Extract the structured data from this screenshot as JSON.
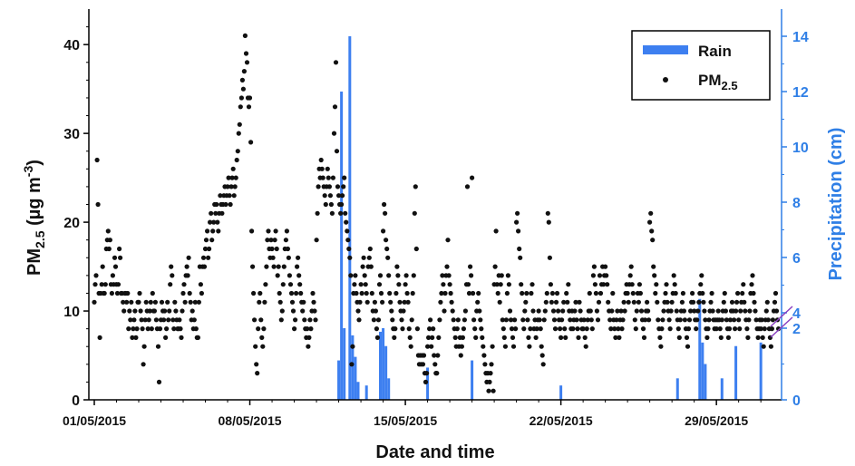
{
  "chart_data": {
    "type": "scatter",
    "title": "",
    "xlabel": "Date and time",
    "ylabel_left": {
      "base": "PM",
      "sub": "2.5",
      "unit_open": " (µg m",
      "sup": "-3",
      "unit_close": ")"
    },
    "ylabel_right": "Precipitation (cm)",
    "x_range_days": [
      "01/05/2015",
      "31/05/2015"
    ],
    "x_ticks": [
      "01/05/2015",
      "08/05/2015",
      "15/05/2015",
      "22/05/2015",
      "29/05/2015"
    ],
    "y_left_lim": [
      0,
      44
    ],
    "y_left_ticks": [
      0,
      10,
      20,
      30,
      40
    ],
    "y_right_lim": [
      0,
      15
    ],
    "y_right_scale": "broken: 0-2 compressed, 4-14 linear",
    "y_right_ticks": [
      0,
      2,
      4,
      6,
      8,
      10,
      12,
      14
    ],
    "legend": {
      "position": "top-right",
      "entries": [
        {
          "label": "Rain"
        },
        {
          "label_base": "PM",
          "label_sub": "2.5"
        }
      ]
    },
    "colors": {
      "rain": "#3d7ff0",
      "pm25": "#111111",
      "right_axis": "#2f7fe6"
    },
    "series": [
      {
        "name": "Rain",
        "kind": "bar",
        "unit": "cm",
        "points": [
          [
            "12/05/2015 00:00",
            1.1
          ],
          [
            "12/05/2015 03:00",
            12.0
          ],
          [
            "12/05/2015 06:00",
            2.0
          ],
          [
            "12/05/2015 12:00",
            14.0
          ],
          [
            "12/05/2015 15:00",
            1.8
          ],
          [
            "12/05/2015 18:00",
            1.2
          ],
          [
            "12/05/2015 21:00",
            0.5
          ],
          [
            "13/05/2015 06:00",
            0.4
          ],
          [
            "13/05/2015 21:00",
            1.9
          ],
          [
            "14/05/2015 00:00",
            2.0
          ],
          [
            "14/05/2015 03:00",
            1.5
          ],
          [
            "14/05/2015 06:00",
            0.6
          ],
          [
            "16/05/2015 00:00",
            0.9
          ],
          [
            "18/05/2015 00:00",
            1.1
          ],
          [
            "22/05/2015 00:00",
            0.4
          ],
          [
            "27/05/2015 06:00",
            0.6
          ],
          [
            "28/05/2015 06:00",
            4.5
          ],
          [
            "28/05/2015 09:00",
            1.6
          ],
          [
            "28/05/2015 12:00",
            1.0
          ],
          [
            "29/05/2015 06:00",
            0.6
          ],
          [
            "29/05/2015 21:00",
            1.5
          ],
          [
            "31/05/2015 00:00",
            1.6
          ]
        ]
      },
      {
        "name": "PM2.5",
        "kind": "scatter",
        "unit": "µg m-3",
        "daily_hourly_profile": [
          [
            "01/05/2015",
            [
              11,
              13,
              14,
              27,
              22,
              12,
              7,
              12,
              13,
              15,
              12,
              12,
              13,
              17,
              18,
              19,
              17,
              18,
              13,
              12,
              14,
              13,
              16,
              15
            ]
          ],
          [
            "02/05/2015",
            [
              13,
              12,
              13,
              17,
              16,
              12,
              12,
              11,
              10,
              12,
              12,
              11,
              12,
              8,
              10,
              9,
              11,
              7,
              8,
              9,
              10,
              7,
              8,
              11
            ]
          ],
          [
            "03/05/2015",
            [
              11,
              12,
              10,
              9,
              8,
              4,
              6,
              9,
              11,
              10,
              8,
              9,
              10,
              11,
              8,
              12,
              10,
              10,
              11,
              9,
              8,
              6,
              2,
              8
            ]
          ],
          [
            "04/05/2015",
            [
              9,
              11,
              10,
              9,
              10,
              7,
              8,
              11,
              9,
              10,
              13,
              15,
              14,
              9,
              8,
              11,
              10,
              9,
              8,
              8,
              9,
              8,
              7,
              10
            ]
          ],
          [
            "05/05/2015",
            [
              12,
              13,
              11,
              14,
              15,
              14,
              16,
              12,
              11,
              9,
              10,
              8,
              9,
              11,
              8,
              7,
              7,
              11,
              15,
              13,
              12,
              15,
              16,
              15
            ]
          ],
          [
            "06/05/2015",
            [
              17,
              18,
              19,
              16,
              17,
              20,
              21,
              18,
              19,
              20,
              22,
              21,
              22,
              20,
              19,
              21,
              23,
              22,
              21,
              22,
              23,
              24,
              22,
              23
            ]
          ],
          [
            "07/05/2015",
            [
              24,
              25,
              23,
              22,
              24,
              25,
              26,
              23,
              24,
              25,
              27,
              28,
              30,
              31,
              33,
              34,
              36,
              35,
              37,
              41,
              39,
              38,
              34,
              33
            ]
          ],
          [
            "08/05/2015",
            [
              34,
              29,
              19,
              15,
              12,
              9,
              6,
              4,
              3,
              8,
              11,
              12,
              9,
              7,
              6,
              8,
              11,
              13,
              15,
              18,
              19,
              17,
              16,
              18
            ]
          ],
          [
            "09/05/2015",
            [
              17,
              16,
              15,
              18,
              19,
              17,
              14,
              15,
              12,
              11,
              9,
              10,
              13,
              15,
              17,
              18,
              19,
              17,
              16,
              14,
              13,
              12,
              11,
              10
            ]
          ],
          [
            "10/05/2015",
            [
              8,
              9,
              12,
              15,
              16,
              14,
              13,
              12,
              11,
              10,
              11,
              9,
              8,
              7,
              8,
              6,
              7,
              9,
              8,
              10,
              12,
              11,
              10,
              9
            ]
          ],
          [
            "11/05/2015",
            [
              18,
              21,
              24,
              26,
              25,
              27,
              26,
              25,
              24,
              23,
              22,
              24,
              26,
              25,
              24,
              23,
              22,
              21,
              25,
              30,
              33,
              38,
              28,
              24
            ]
          ],
          [
            "12/05/2015",
            [
              23,
              22,
              21,
              22,
              23,
              24,
              25,
              21,
              20,
              19,
              18,
              17,
              16,
              14,
              4,
              6,
              12,
              13,
              14,
              12,
              11,
              10,
              9,
              11
            ]
          ],
          [
            "13/05/2015",
            [
              13,
              12,
              15,
              16,
              14,
              13,
              12,
              11,
              15,
              16,
              17,
              15,
              12,
              10,
              9,
              11,
              10,
              8,
              7,
              9,
              13,
              14,
              12,
              11
            ]
          ],
          [
            "14/05/2015",
            [
              19,
              22,
              21,
              18,
              17,
              16,
              14,
              12,
              11,
              10,
              9,
              8,
              7,
              8,
              12,
              15,
              14,
              13,
              11,
              10,
              9,
              8,
              10,
              11
            ]
          ],
          [
            "15/05/2015",
            [
              13,
              14,
              12,
              11,
              8,
              7,
              6,
              9,
              12,
              14,
              21,
              24,
              17,
              8,
              5,
              4,
              5,
              4,
              5,
              4,
              5,
              3,
              2,
              3
            ]
          ],
          [
            "16/05/2015",
            [
              6,
              7,
              8,
              9,
              6,
              7,
              8,
              5,
              4,
              3,
              3,
              5,
              7,
              9,
              11,
              12,
              14,
              13,
              10,
              12,
              14,
              15,
              18,
              14
            ]
          ],
          [
            "17/05/2015",
            [
              13,
              12,
              11,
              10,
              9,
              8,
              7,
              6,
              8,
              9,
              6,
              7,
              5,
              6,
              7,
              8,
              9,
              10,
              13,
              24,
              13,
              12,
              15,
              14
            ]
          ],
          [
            "18/05/2015",
            [
              25,
              12,
              9,
              8,
              7,
              10,
              11,
              12,
              10,
              9,
              8,
              7,
              6,
              5,
              4,
              3,
              2,
              3,
              1,
              2,
              3,
              4,
              6,
              1
            ]
          ],
          [
            "19/05/2015",
            [
              13,
              15,
              19,
              13,
              12,
              14,
              11,
              13,
              14,
              9,
              8,
              7,
              6,
              9,
              12,
              14,
              13,
              10,
              9,
              8,
              7,
              6,
              9,
              8
            ]
          ],
          [
            "20/05/2015",
            [
              20,
              21,
              19,
              17,
              16,
              13,
              12,
              9,
              8,
              10,
              11,
              12,
              9,
              7,
              6,
              8,
              12,
              13,
              10,
              8,
              9,
              7,
              8,
              9
            ]
          ],
          [
            "21/05/2015",
            [
              10,
              9,
              8,
              6,
              5,
              4,
              9,
              10,
              11,
              12,
              21,
              20,
              16,
              13,
              11,
              12,
              10,
              9,
              8,
              11,
              12,
              10,
              9,
              8
            ]
          ],
          [
            "22/05/2015",
            [
              7,
              9,
              10,
              11,
              8,
              7,
              12,
              11,
              13,
              10,
              9,
              8,
              10,
              8,
              9,
              10,
              11,
              9,
              8,
              7,
              11,
              10,
              9,
              8
            ]
          ],
          [
            "23/05/2015",
            [
              8,
              9,
              7,
              6,
              8,
              9,
              10,
              12,
              10,
              9,
              8,
              14,
              15,
              13,
              12,
              10,
              9,
              11,
              14,
              12,
              13,
              15,
              13,
              14
            ]
          ],
          [
            "24/05/2015",
            [
              15,
              14,
              13,
              11,
              10,
              9,
              8,
              10,
              12,
              9,
              8,
              7,
              9,
              10,
              8,
              7,
              9,
              10,
              8,
              9,
              11,
              10,
              12,
              13
            ]
          ],
          [
            "25/05/2015",
            [
              12,
              11,
              13,
              14,
              15,
              13,
              12,
              11,
              9,
              8,
              10,
              12,
              11,
              13,
              12,
              10,
              9,
              8,
              7,
              9,
              10,
              11,
              10,
              9
            ]
          ],
          [
            "26/05/2015",
            [
              20,
              21,
              19,
              18,
              15,
              14,
              12,
              13,
              11,
              9,
              8,
              7,
              6,
              8,
              9,
              10,
              11,
              12,
              13,
              11,
              10,
              9,
              8,
              10
            ]
          ],
          [
            "27/05/2015",
            [
              11,
              12,
              14,
              13,
              12,
              10,
              9,
              8,
              7,
              9,
              10,
              11,
              12,
              10,
              9,
              8,
              7,
              6,
              8,
              9,
              10,
              11,
              12,
              11
            ]
          ],
          [
            "28/05/2015",
            [
              10,
              9,
              8,
              9,
              10,
              11,
              12,
              13,
              14,
              12,
              11,
              10,
              9,
              8,
              7,
              8,
              9,
              10,
              11,
              12,
              10,
              9,
              8,
              9
            ]
          ],
          [
            "29/05/2015",
            [
              8,
              9,
              10,
              9,
              8,
              7,
              9,
              10,
              11,
              12,
              10,
              9,
              8,
              7,
              8,
              9,
              10,
              11,
              10,
              9,
              8,
              10,
              11,
              12
            ]
          ],
          [
            "30/05/2015",
            [
              9,
              8,
              10,
              11,
              12,
              13,
              11,
              10,
              9,
              8,
              7,
              9,
              10,
              12,
              13,
              14,
              12,
              11,
              10,
              9,
              8,
              7,
              8,
              9
            ]
          ],
          [
            "31/05/2015",
            [
              8,
              9,
              7,
              6,
              8,
              9,
              10,
              11,
              9,
              8,
              7,
              6,
              8,
              9,
              10,
              11,
              12,
              10,
              9,
              8,
              7,
              6,
              8,
              9
            ]
          ]
        ]
      }
    ]
  }
}
